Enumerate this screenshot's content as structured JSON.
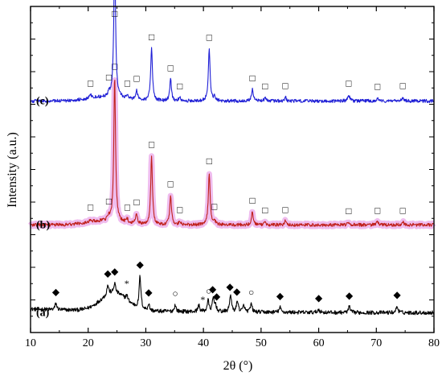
{
  "chart_data": {
    "type": "line",
    "title": "",
    "xlabel": "2θ (°)",
    "ylabel": "Intensity (a.u.)",
    "xlim": [
      10,
      80
    ],
    "x_ticks": [
      10,
      20,
      30,
      40,
      50,
      60,
      70,
      80
    ],
    "y_ticks_labeled": false,
    "grid": false,
    "legend": "none",
    "series": [
      {
        "name": "(a)",
        "color": "#000000",
        "baseline": 0.06,
        "noise": 0.006,
        "background": {
          "center": 24.5,
          "width": 3.2,
          "height": 0.055,
          "tail": 0.012
        },
        "peaks": [
          {
            "x": 14.4,
            "h": 0.02
          },
          {
            "x": 23.4,
            "h": 0.03
          },
          {
            "x": 24.6,
            "h": 0.03
          },
          {
            "x": 26.7,
            "h": 0.015
          },
          {
            "x": 29.0,
            "h": 0.1
          },
          {
            "x": 30.5,
            "h": 0.02
          },
          {
            "x": 35.1,
            "h": 0.02
          },
          {
            "x": 39.2,
            "h": 0.02
          },
          {
            "x": 40.8,
            "h": 0.035
          },
          {
            "x": 41.7,
            "h": 0.04
          },
          {
            "x": 42.1,
            "h": 0.02
          },
          {
            "x": 44.7,
            "h": 0.055
          },
          {
            "x": 45.9,
            "h": 0.035
          },
          {
            "x": 47.0,
            "h": 0.02
          },
          {
            "x": 48.3,
            "h": 0.025
          },
          {
            "x": 53.3,
            "h": 0.015
          },
          {
            "x": 60.0,
            "h": 0.01
          },
          {
            "x": 65.3,
            "h": 0.018
          },
          {
            "x": 73.6,
            "h": 0.02
          }
        ],
        "markers": [
          {
            "x": 14.4,
            "symbol": "◆"
          },
          {
            "x": 23.4,
            "symbol": "◆"
          },
          {
            "x": 24.6,
            "symbol": "◆"
          },
          {
            "x": 26.7,
            "symbol": "*"
          },
          {
            "x": 29.0,
            "symbol": "◆"
          },
          {
            "x": 30.5,
            "symbol": "◆"
          },
          {
            "x": 35.1,
            "symbol": "○"
          },
          {
            "x": 39.9,
            "symbol": "*"
          },
          {
            "x": 40.9,
            "symbol": "○"
          },
          {
            "x": 41.6,
            "symbol": "◆"
          },
          {
            "x": 42.3,
            "symbol": "◆"
          },
          {
            "x": 44.6,
            "symbol": "◆"
          },
          {
            "x": 45.8,
            "symbol": "◆"
          },
          {
            "x": 48.3,
            "symbol": "○"
          },
          {
            "x": 53.3,
            "symbol": "◆"
          },
          {
            "x": 60.0,
            "symbol": "◆"
          },
          {
            "x": 65.3,
            "symbol": "◆"
          },
          {
            "x": 73.6,
            "symbol": "◆"
          }
        ]
      },
      {
        "name": "(b)",
        "color": "#c0201b",
        "band_color": "#e9a6e8",
        "baseline": 0.33,
        "noise": 0.005,
        "background": {
          "center": 23.0,
          "width": 4.5,
          "height": 0.012,
          "tail": 0.0
        },
        "peaks": [
          {
            "x": 20.4,
            "h": 0.01
          },
          {
            "x": 23.6,
            "h": 0.012
          },
          {
            "x": 24.6,
            "h": 0.44
          },
          {
            "x": 26.8,
            "h": 0.01
          },
          {
            "x": 28.4,
            "h": 0.03
          },
          {
            "x": 31.0,
            "h": 0.21
          },
          {
            "x": 34.3,
            "h": 0.09
          },
          {
            "x": 35.9,
            "h": 0.01
          },
          {
            "x": 41.0,
            "h": 0.16
          },
          {
            "x": 41.9,
            "h": 0.015
          },
          {
            "x": 48.5,
            "h": 0.04
          },
          {
            "x": 50.7,
            "h": 0.01
          },
          {
            "x": 54.2,
            "h": 0.012
          },
          {
            "x": 65.2,
            "h": 0.008
          },
          {
            "x": 70.2,
            "h": 0.01
          },
          {
            "x": 74.6,
            "h": 0.01
          }
        ],
        "markers": [
          20.4,
          23.6,
          24.6,
          26.8,
          28.4,
          31.0,
          34.3,
          35.9,
          41.0,
          41.9,
          48.5,
          50.7,
          54.2,
          65.2,
          70.2,
          74.6
        ],
        "marker_symbol": "□"
      },
      {
        "name": "(c)",
        "color": "#1f1fd6",
        "baseline": 0.71,
        "noise": 0.005,
        "background": {
          "center": 23.0,
          "width": 4.5,
          "height": 0.012,
          "tail": 0.0
        },
        "peaks": [
          {
            "x": 20.4,
            "h": 0.01
          },
          {
            "x": 23.6,
            "h": 0.012
          },
          {
            "x": 24.6,
            "h": 0.44
          },
          {
            "x": 26.8,
            "h": 0.01
          },
          {
            "x": 28.4,
            "h": 0.03
          },
          {
            "x": 31.0,
            "h": 0.16
          },
          {
            "x": 34.3,
            "h": 0.065
          },
          {
            "x": 35.9,
            "h": 0.01
          },
          {
            "x": 41.0,
            "h": 0.16
          },
          {
            "x": 41.9,
            "h": 0.012
          },
          {
            "x": 48.5,
            "h": 0.035
          },
          {
            "x": 50.7,
            "h": 0.01
          },
          {
            "x": 54.2,
            "h": 0.012
          },
          {
            "x": 65.2,
            "h": 0.02
          },
          {
            "x": 70.2,
            "h": 0.01
          },
          {
            "x": 74.6,
            "h": 0.012
          }
        ],
        "markers": [
          20.4,
          23.6,
          26.8,
          28.4,
          31.0,
          34.3,
          35.9,
          41.0,
          48.5,
          50.7,
          54.2,
          65.2,
          70.2,
          74.6
        ],
        "marker_symbol": "□",
        "top_marker_x": 24.6
      }
    ]
  }
}
